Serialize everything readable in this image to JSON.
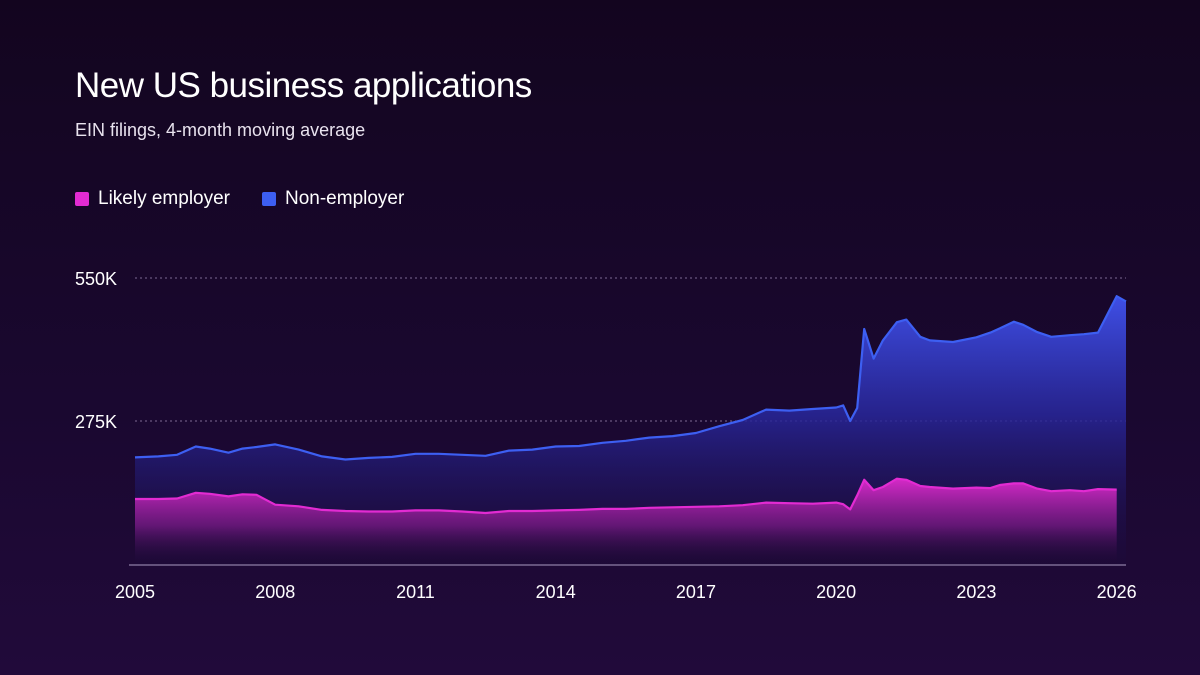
{
  "chart_data": {
    "type": "area",
    "title": "New US business applications",
    "subtitle": "EIN filings, 4-month moving average",
    "xlabel": "",
    "ylabel": "",
    "x_ticks": [
      "2005",
      "2008",
      "2011",
      "2014",
      "2017",
      "2020",
      "2023",
      "2026"
    ],
    "y_ticks": [
      {
        "value": 550000,
        "label": "550K"
      },
      {
        "value": 275000,
        "label": "275K"
      }
    ],
    "xlim": [
      2005.0,
      2026.2
    ],
    "ylim": [
      0,
      550000
    ],
    "grid": "horizontal dotted",
    "legend_placement": "top-left",
    "series": [
      {
        "name": "Likely employer",
        "color": "#e22bd2",
        "x": [
          2005.0,
          2005.5,
          2005.9,
          2006.3,
          2006.6,
          2007.0,
          2007.3,
          2007.6,
          2008.0,
          2008.5,
          2009.0,
          2009.5,
          2010.0,
          2010.5,
          2011.0,
          2011.5,
          2012.0,
          2012.5,
          2013.0,
          2013.5,
          2014.0,
          2014.5,
          2015.0,
          2015.5,
          2016.0,
          2016.5,
          2017.0,
          2017.5,
          2018.0,
          2018.5,
          2019.0,
          2019.5,
          2020.0,
          2020.15,
          2020.3,
          2020.45,
          2020.6,
          2020.8,
          2021.0,
          2021.3,
          2021.5,
          2021.8,
          2022.0,
          2022.5,
          2023.0,
          2023.3,
          2023.5,
          2023.8,
          2024.0,
          2024.3,
          2024.6,
          2025.0,
          2025.3,
          2025.6,
          2026.0
        ],
        "values": [
          125000,
          125000,
          126000,
          137000,
          135000,
          130000,
          134000,
          133000,
          114000,
          111000,
          104000,
          102000,
          101000,
          101000,
          103000,
          103000,
          101000,
          98000,
          102000,
          102000,
          103000,
          104000,
          106000,
          106000,
          108000,
          109000,
          110000,
          111000,
          113000,
          118000,
          117000,
          116000,
          118000,
          115000,
          105000,
          132000,
          162000,
          142000,
          148000,
          164000,
          162000,
          150000,
          148000,
          145000,
          147000,
          146000,
          152000,
          155000,
          155000,
          145000,
          140000,
          142000,
          140000,
          144000,
          143000
        ]
      },
      {
        "name": "Non-employer",
        "color": "#3d5ff2",
        "x": [
          2005.0,
          2005.5,
          2005.9,
          2006.3,
          2006.6,
          2007.0,
          2007.3,
          2007.6,
          2008.0,
          2008.5,
          2009.0,
          2009.5,
          2010.0,
          2010.5,
          2011.0,
          2011.5,
          2012.0,
          2012.5,
          2013.0,
          2013.5,
          2014.0,
          2014.5,
          2015.0,
          2015.5,
          2016.0,
          2016.5,
          2017.0,
          2017.5,
          2018.0,
          2018.5,
          2019.0,
          2019.5,
          2020.0,
          2020.15,
          2020.3,
          2020.45,
          2020.6,
          2020.8,
          2021.0,
          2021.3,
          2021.5,
          2021.8,
          2022.0,
          2022.5,
          2023.0,
          2023.3,
          2023.5,
          2023.8,
          2024.0,
          2024.3,
          2024.6,
          2025.0,
          2025.3,
          2025.6,
          2026.0,
          2026.2
        ],
        "values": [
          205000,
          207000,
          210000,
          226000,
          222000,
          214000,
          222000,
          225000,
          230000,
          220000,
          207000,
          201000,
          204000,
          206000,
          212000,
          212000,
          210000,
          208000,
          218000,
          220000,
          226000,
          227000,
          233000,
          237000,
          243000,
          246000,
          252000,
          265000,
          277000,
          297000,
          295000,
          298000,
          301000,
          305000,
          275000,
          300000,
          452000,
          395000,
          430000,
          465000,
          470000,
          437000,
          430000,
          427000,
          436000,
          445000,
          453000,
          466000,
          460000,
          446000,
          437000,
          440000,
          442000,
          445000,
          515000,
          505000
        ]
      }
    ]
  }
}
